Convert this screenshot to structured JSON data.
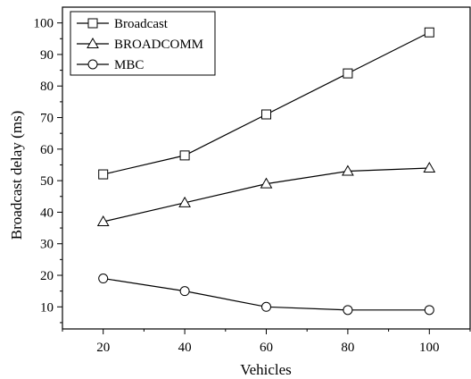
{
  "chart_data": {
    "type": "line",
    "xlabel": "Vehicles",
    "ylabel": "Broadcast delay (ms)",
    "x": [
      20,
      40,
      60,
      80,
      100
    ],
    "x_ticks": [
      20,
      40,
      60,
      80,
      100
    ],
    "y_ticks": [
      10,
      20,
      30,
      40,
      50,
      60,
      70,
      80,
      90,
      100
    ],
    "xlim": [
      10,
      110
    ],
    "ylim": [
      3,
      105
    ],
    "grid": false,
    "legend_position": "top-left",
    "series": [
      {
        "name": "Broadcast",
        "marker": "square",
        "values": [
          52,
          58,
          71,
          84,
          97
        ]
      },
      {
        "name": "BROADCOMM",
        "marker": "triangle",
        "values": [
          37,
          43,
          49,
          53,
          54
        ]
      },
      {
        "name": "MBC",
        "marker": "circle",
        "values": [
          19,
          15,
          10,
          9,
          9
        ]
      }
    ]
  }
}
